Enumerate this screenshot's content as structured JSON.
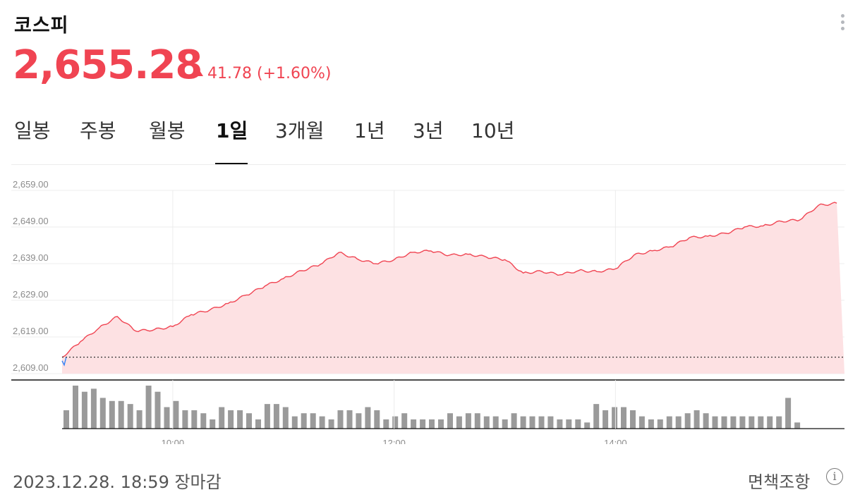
{
  "title": "코스피",
  "price": "2,655.28",
  "change": {
    "value": "41.78",
    "percent": "(+1.60%)",
    "direction": "up",
    "color": "#f04452"
  },
  "tabs": [
    {
      "label": "일봉",
      "active": false
    },
    {
      "label": "주봉",
      "active": false
    },
    {
      "label": "월봉",
      "active": false
    },
    {
      "label": "1일",
      "active": true
    },
    {
      "label": "3개월",
      "active": false
    },
    {
      "label": "1년",
      "active": false
    },
    {
      "label": "3년",
      "active": false
    },
    {
      "label": "10년",
      "active": false
    }
  ],
  "footer": {
    "date": "2023.12.28. 18:59 장마감",
    "disclaimer": "면책조항",
    "info_icon": "info-icon"
  },
  "colors": {
    "up": "#f04452",
    "down": "#3182f6",
    "area": "#fde1e3",
    "volume": "#9a9a9a"
  },
  "chart_data": {
    "type": "line",
    "ylim": [
      2609,
      2659
    ],
    "yticks": [
      "2,659.00",
      "2,649.00",
      "2,639.00",
      "2,629.00",
      "2,619.00",
      "2,609.00"
    ],
    "xticks": [
      "10:00",
      "12:00",
      "14:00"
    ],
    "previous_close": 2613.5,
    "grid": true,
    "series": [
      {
        "x": [
          "09:00",
          "09:10",
          "09:20",
          "09:30",
          "09:40",
          "09:50",
          "10:00",
          "10:10",
          "10:20",
          "10:30",
          "10:40",
          "10:50",
          "11:00",
          "11:10",
          "11:20",
          "11:30",
          "11:40",
          "11:50",
          "12:00",
          "12:10",
          "12:20",
          "12:30",
          "12:40",
          "12:50",
          "13:00",
          "13:10",
          "13:20",
          "13:30",
          "13:40",
          "13:50",
          "14:00",
          "14:10",
          "14:20",
          "14:30",
          "14:40",
          "14:50",
          "15:00",
          "15:10",
          "15:20",
          "15:30",
          "15:40",
          "15:50",
          "16:00"
        ],
        "values": [
          2613.5,
          2617.5,
          2621.0,
          2624.0,
          2620.0,
          2620.5,
          2621.5,
          2625.0,
          2626.5,
          2628.5,
          2631.0,
          2633.5,
          2635.5,
          2637.5,
          2639.0,
          2642.0,
          2640.0,
          2638.5,
          2639.5,
          2641.5,
          2642.0,
          2641.0,
          2641.5,
          2641.0,
          2640.5,
          2637.0,
          2637.5,
          2636.5,
          2637.5,
          2637.0,
          2637.5,
          2641.0,
          2642.0,
          2643.0,
          2645.5,
          2646.0,
          2647.0,
          2649.0,
          2649.5,
          2651.0,
          2651.5,
          2655.5,
          2655.5
        ]
      }
    ],
    "volume": [
      6,
      14,
      12,
      13,
      10,
      9,
      9,
      8,
      6,
      14,
      12,
      7,
      9,
      6,
      6,
      5,
      3,
      7,
      6,
      6,
      5,
      3,
      8,
      8,
      7,
      4,
      5,
      5,
      4,
      3,
      6,
      6,
      5,
      7,
      6,
      3,
      4,
      5,
      3,
      3,
      3,
      3,
      5,
      4,
      5,
      5,
      4,
      4,
      3,
      5,
      4,
      4,
      4,
      4,
      3,
      3,
      3,
      2,
      8,
      6,
      7,
      7,
      6,
      4,
      3,
      3,
      4,
      4,
      5,
      6,
      5,
      4,
      4,
      4,
      4,
      4,
      4,
      4,
      4,
      10,
      2,
      0
    ]
  }
}
